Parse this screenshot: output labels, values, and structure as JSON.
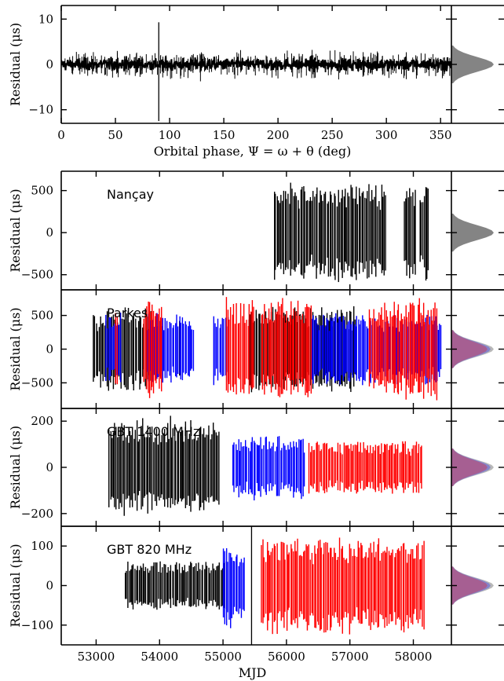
{
  "chart_data": [
    {
      "type": "scatter",
      "xlabel": "Orbital phase, Ψ = ω + θ (deg)",
      "ylabel": "Residual (μs)",
      "xlim": [
        0,
        360
      ],
      "ylim": [
        -13,
        13
      ],
      "xticks": [
        0,
        50,
        100,
        150,
        200,
        250,
        300,
        350
      ],
      "yticks": [
        10,
        0,
        -10
      ],
      "series": [
        {
          "color": "#000000",
          "residual_scatter_us": 1.2,
          "x_range": [
            0,
            360
          ]
        }
      ],
      "spike": {
        "x": 90,
        "y_range": [
          -12.5,
          9.3
        ]
      },
      "histogram": true
    },
    {
      "type": "scatter",
      "label": "Nançay",
      "ylabel": "Residual (μs)",
      "xlim": [
        52450,
        58600
      ],
      "ylim": [
        -680,
        730
      ],
      "yticks": [
        500,
        0,
        -500
      ],
      "series": [
        {
          "color": "#000000",
          "segments": [
            [
              55800,
              57580
            ],
            [
              57850,
              58050
            ],
            [
              58100,
              58250
            ]
          ],
          "amplitude_us": 560
        }
      ]
    },
    {
      "type": "scatter",
      "label": "Parkes",
      "ylabel": "Residual (μs)",
      "xlim": [
        52450,
        58600
      ],
      "ylim": [
        -880,
        880
      ],
      "yticks": [
        500,
        0,
        -500
      ],
      "series": [
        {
          "color": "#000000",
          "segments": [
            [
              52950,
              53900
            ],
            [
              54300,
              54350
            ],
            [
              55400,
              57100
            ]
          ],
          "amplitude_us": 600
        },
        {
          "color": "#0000ff",
          "segments": [
            [
              53150,
              53400
            ],
            [
              53800,
              54550
            ],
            [
              54850,
              55100
            ],
            [
              56400,
              58450
            ]
          ],
          "amplitude_us": 520
        },
        {
          "color": "#ff0000",
          "segments": [
            [
              53300,
              53350
            ],
            [
              53750,
              54050
            ],
            [
              55050,
              55500
            ],
            [
              55600,
              56400
            ],
            [
              57300,
              58380
            ]
          ],
          "amplitude_us": 720
        }
      ]
    },
    {
      "type": "scatter",
      "label": "GBT 1400 MHz",
      "ylabel": "Residual (μs)",
      "xlim": [
        52450,
        58600
      ],
      "ylim": [
        -255,
        255
      ],
      "yticks": [
        200,
        0,
        -200
      ],
      "series": [
        {
          "color": "#000000",
          "segments": [
            [
              53200,
              54950
            ]
          ],
          "amplitude_us": 200
        },
        {
          "color": "#0000ff",
          "segments": [
            [
              55150,
              56300
            ]
          ],
          "amplitude_us": 130
        },
        {
          "color": "#ff0000",
          "segments": [
            [
              56350,
              58150
            ]
          ],
          "amplitude_us": 110
        }
      ]
    },
    {
      "type": "scatter",
      "label": "GBT 820 MHz",
      "ylabel": "Residual (μs)",
      "xlabel": "MJD",
      "xlim": [
        52450,
        58600
      ],
      "ylim": [
        -150,
        150
      ],
      "xticks": [
        53000,
        54000,
        55000,
        56000,
        57000,
        58000
      ],
      "yticks": [
        100,
        0,
        -100
      ],
      "series": [
        {
          "color": "#000000",
          "segments": [
            [
              53450,
              55050
            ]
          ],
          "amplitude_us": 60
        },
        {
          "color": "#0000ff",
          "segments": [
            [
              55000,
              55350
            ]
          ],
          "amplitude_us": 100
        },
        {
          "color": "#ff0000",
          "segments": [
            [
              55600,
              58180
            ]
          ],
          "amplitude_us": 115
        }
      ],
      "spike": {
        "x": 55450,
        "y_range": [
          -150,
          150
        ]
      },
      "histogram": true
    }
  ]
}
